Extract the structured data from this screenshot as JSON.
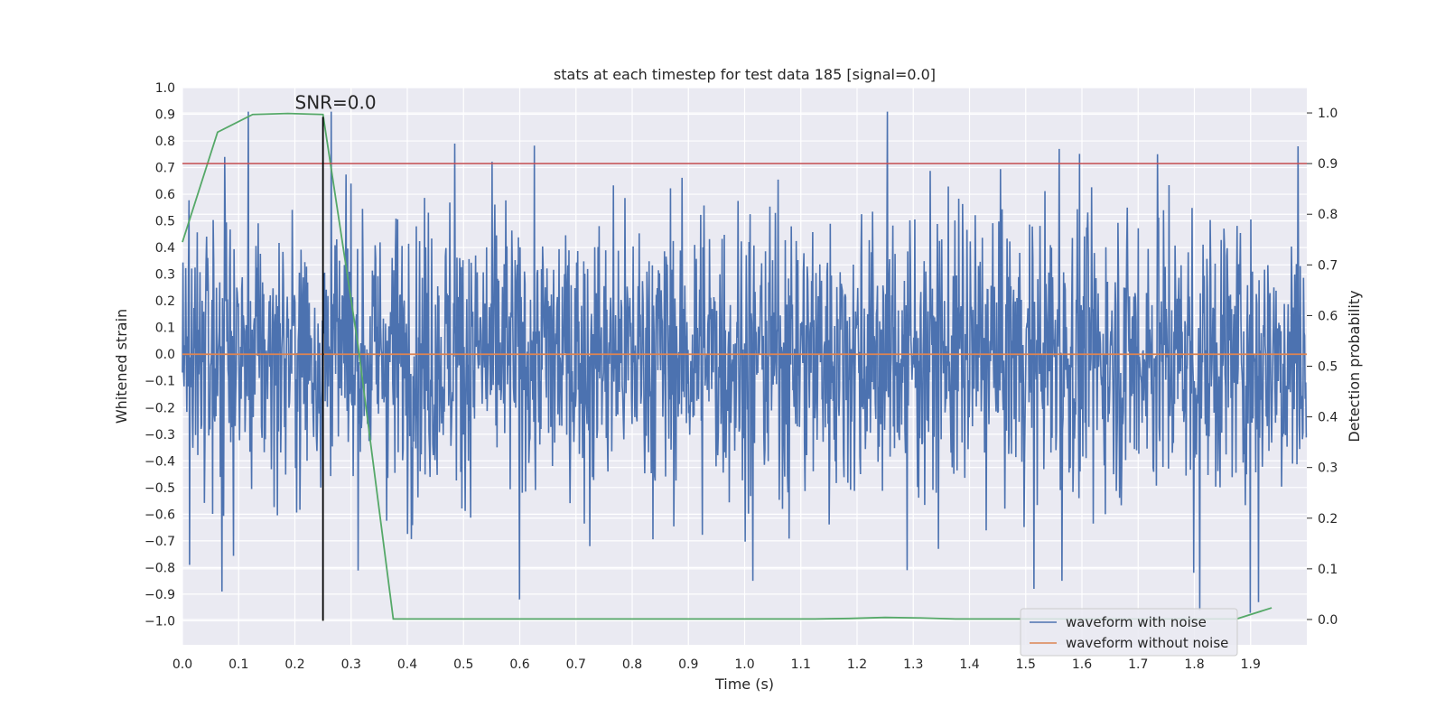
{
  "chart_data": {
    "type": "line",
    "title": "stats at each timestep for test data 185 [signal=0.0]",
    "xlabel": "Time (s)",
    "ylabel_left": "Whitened strain",
    "ylabel_right": "Detection probability",
    "xlim": [
      0.0,
      2.0
    ],
    "ylim_left": [
      -1.09,
      1.0
    ],
    "ylim_right": [
      -0.05,
      1.05
    ],
    "x_ticks": [
      0.0,
      0.1,
      0.2,
      0.3,
      0.4,
      0.5,
      0.6,
      0.7,
      0.8,
      0.9,
      1.0,
      1.1,
      1.2,
      1.3,
      1.4,
      1.5,
      1.6,
      1.7,
      1.8,
      1.9
    ],
    "x_tick_labels": [
      "0.0",
      "0.1",
      "0.2",
      "0.3",
      "0.4",
      "0.5",
      "0.6",
      "0.7",
      "0.8",
      "0.9",
      "1.0",
      "1.1",
      "1.2",
      "1.3",
      "1.4",
      "1.5",
      "1.6",
      "1.7",
      "1.8",
      "1.9"
    ],
    "y_left_ticks": [
      1.0,
      0.9,
      0.8,
      0.7,
      0.6,
      0.5,
      0.4,
      0.3,
      0.2,
      0.1,
      0.0,
      -0.1,
      -0.2,
      -0.3,
      -0.4,
      -0.5,
      -0.6,
      -0.7,
      -0.8,
      -0.9,
      -1.0
    ],
    "y_left_tick_labels": [
      "1.0",
      "0.9",
      "0.8",
      "0.7",
      "0.6",
      "0.5",
      "0.4",
      "0.3",
      "0.2",
      "0.1",
      "0.0",
      "−0.1",
      "−0.2",
      "−0.3",
      "−0.4",
      "−0.5",
      "−0.6",
      "−0.7",
      "−0.8",
      "−0.9",
      "−1.0"
    ],
    "y_right_ticks": [
      1.0,
      0.9,
      0.8,
      0.7,
      0.6,
      0.5,
      0.4,
      0.3,
      0.2,
      0.1,
      0.0
    ],
    "y_right_tick_labels": [
      "1.0",
      "0.9",
      "0.8",
      "0.7",
      "0.6",
      "0.5",
      "0.4",
      "0.3",
      "0.2",
      "0.1",
      "0.0"
    ],
    "grid": true,
    "legend_position": "lower-right",
    "series": [
      {
        "name": "waveform with noise",
        "axis": "left",
        "color": "#4c72b0",
        "noise_sigma": 0.26,
        "sample_count": 2048,
        "peaks": [
          {
            "x": 0.117,
            "y": 0.91
          },
          {
            "x": 0.265,
            "y": 0.91
          },
          {
            "x": 0.485,
            "y": 0.79
          },
          {
            "x": 1.255,
            "y": 0.91
          },
          {
            "x": 1.56,
            "y": 0.77
          },
          {
            "x": 1.985,
            "y": 0.78
          },
          {
            "x": 0.075,
            "y": 0.74
          },
          {
            "x": 1.735,
            "y": 0.75
          },
          {
            "x": 1.9,
            "y": 0.75
          },
          {
            "x": 0.013,
            "y": -0.79
          },
          {
            "x": 0.07,
            "y": -0.89
          },
          {
            "x": 0.6,
            "y": -0.92
          },
          {
            "x": 1.015,
            "y": -0.85
          },
          {
            "x": 1.515,
            "y": -0.88
          },
          {
            "x": 1.565,
            "y": -0.85
          },
          {
            "x": 1.8,
            "y": -0.82
          },
          {
            "x": 1.81,
            "y": -0.96
          },
          {
            "x": 1.9,
            "y": -0.97
          },
          {
            "x": 1.915,
            "y": -0.93
          },
          {
            "x": 0.725,
            "y": -0.72
          },
          {
            "x": 1.29,
            "y": -0.81
          }
        ]
      },
      {
        "name": "waveform without noise",
        "axis": "left",
        "color": "#dd8452",
        "x": [
          0.0,
          2.0
        ],
        "y": [
          0.0,
          0.0
        ]
      },
      {
        "name": "",
        "axis": "right",
        "color": "#55a868",
        "x": [
          0.0,
          0.0625,
          0.125,
          0.1875,
          0.25,
          0.3125,
          0.375,
          0.4375,
          0.5,
          0.5625,
          0.625,
          0.6875,
          0.75,
          0.8125,
          0.875,
          0.9375,
          1.0,
          1.0625,
          1.125,
          1.1875,
          1.25,
          1.3125,
          1.375,
          1.4375,
          1.5,
          1.5625,
          1.625,
          1.6875,
          1.75,
          1.8125,
          1.875,
          1.9375
        ],
        "y": [
          0.745,
          0.962,
          0.997,
          0.999,
          0.997,
          0.54,
          0.001,
          0.001,
          0.001,
          0.001,
          0.001,
          0.001,
          0.001,
          0.001,
          0.001,
          0.001,
          0.001,
          0.001,
          0.001,
          0.002,
          0.004,
          0.003,
          0.001,
          0.001,
          0.001,
          0.001,
          0.001,
          0.001,
          0.001,
          0.001,
          0.001,
          0.023
        ]
      }
    ],
    "threshold": {
      "axis": "right",
      "y": 0.9,
      "color": "#c44e52"
    },
    "marker": {
      "x": 0.25,
      "color": "#000000"
    },
    "annotation": {
      "text": "SNR=0.0"
    }
  }
}
